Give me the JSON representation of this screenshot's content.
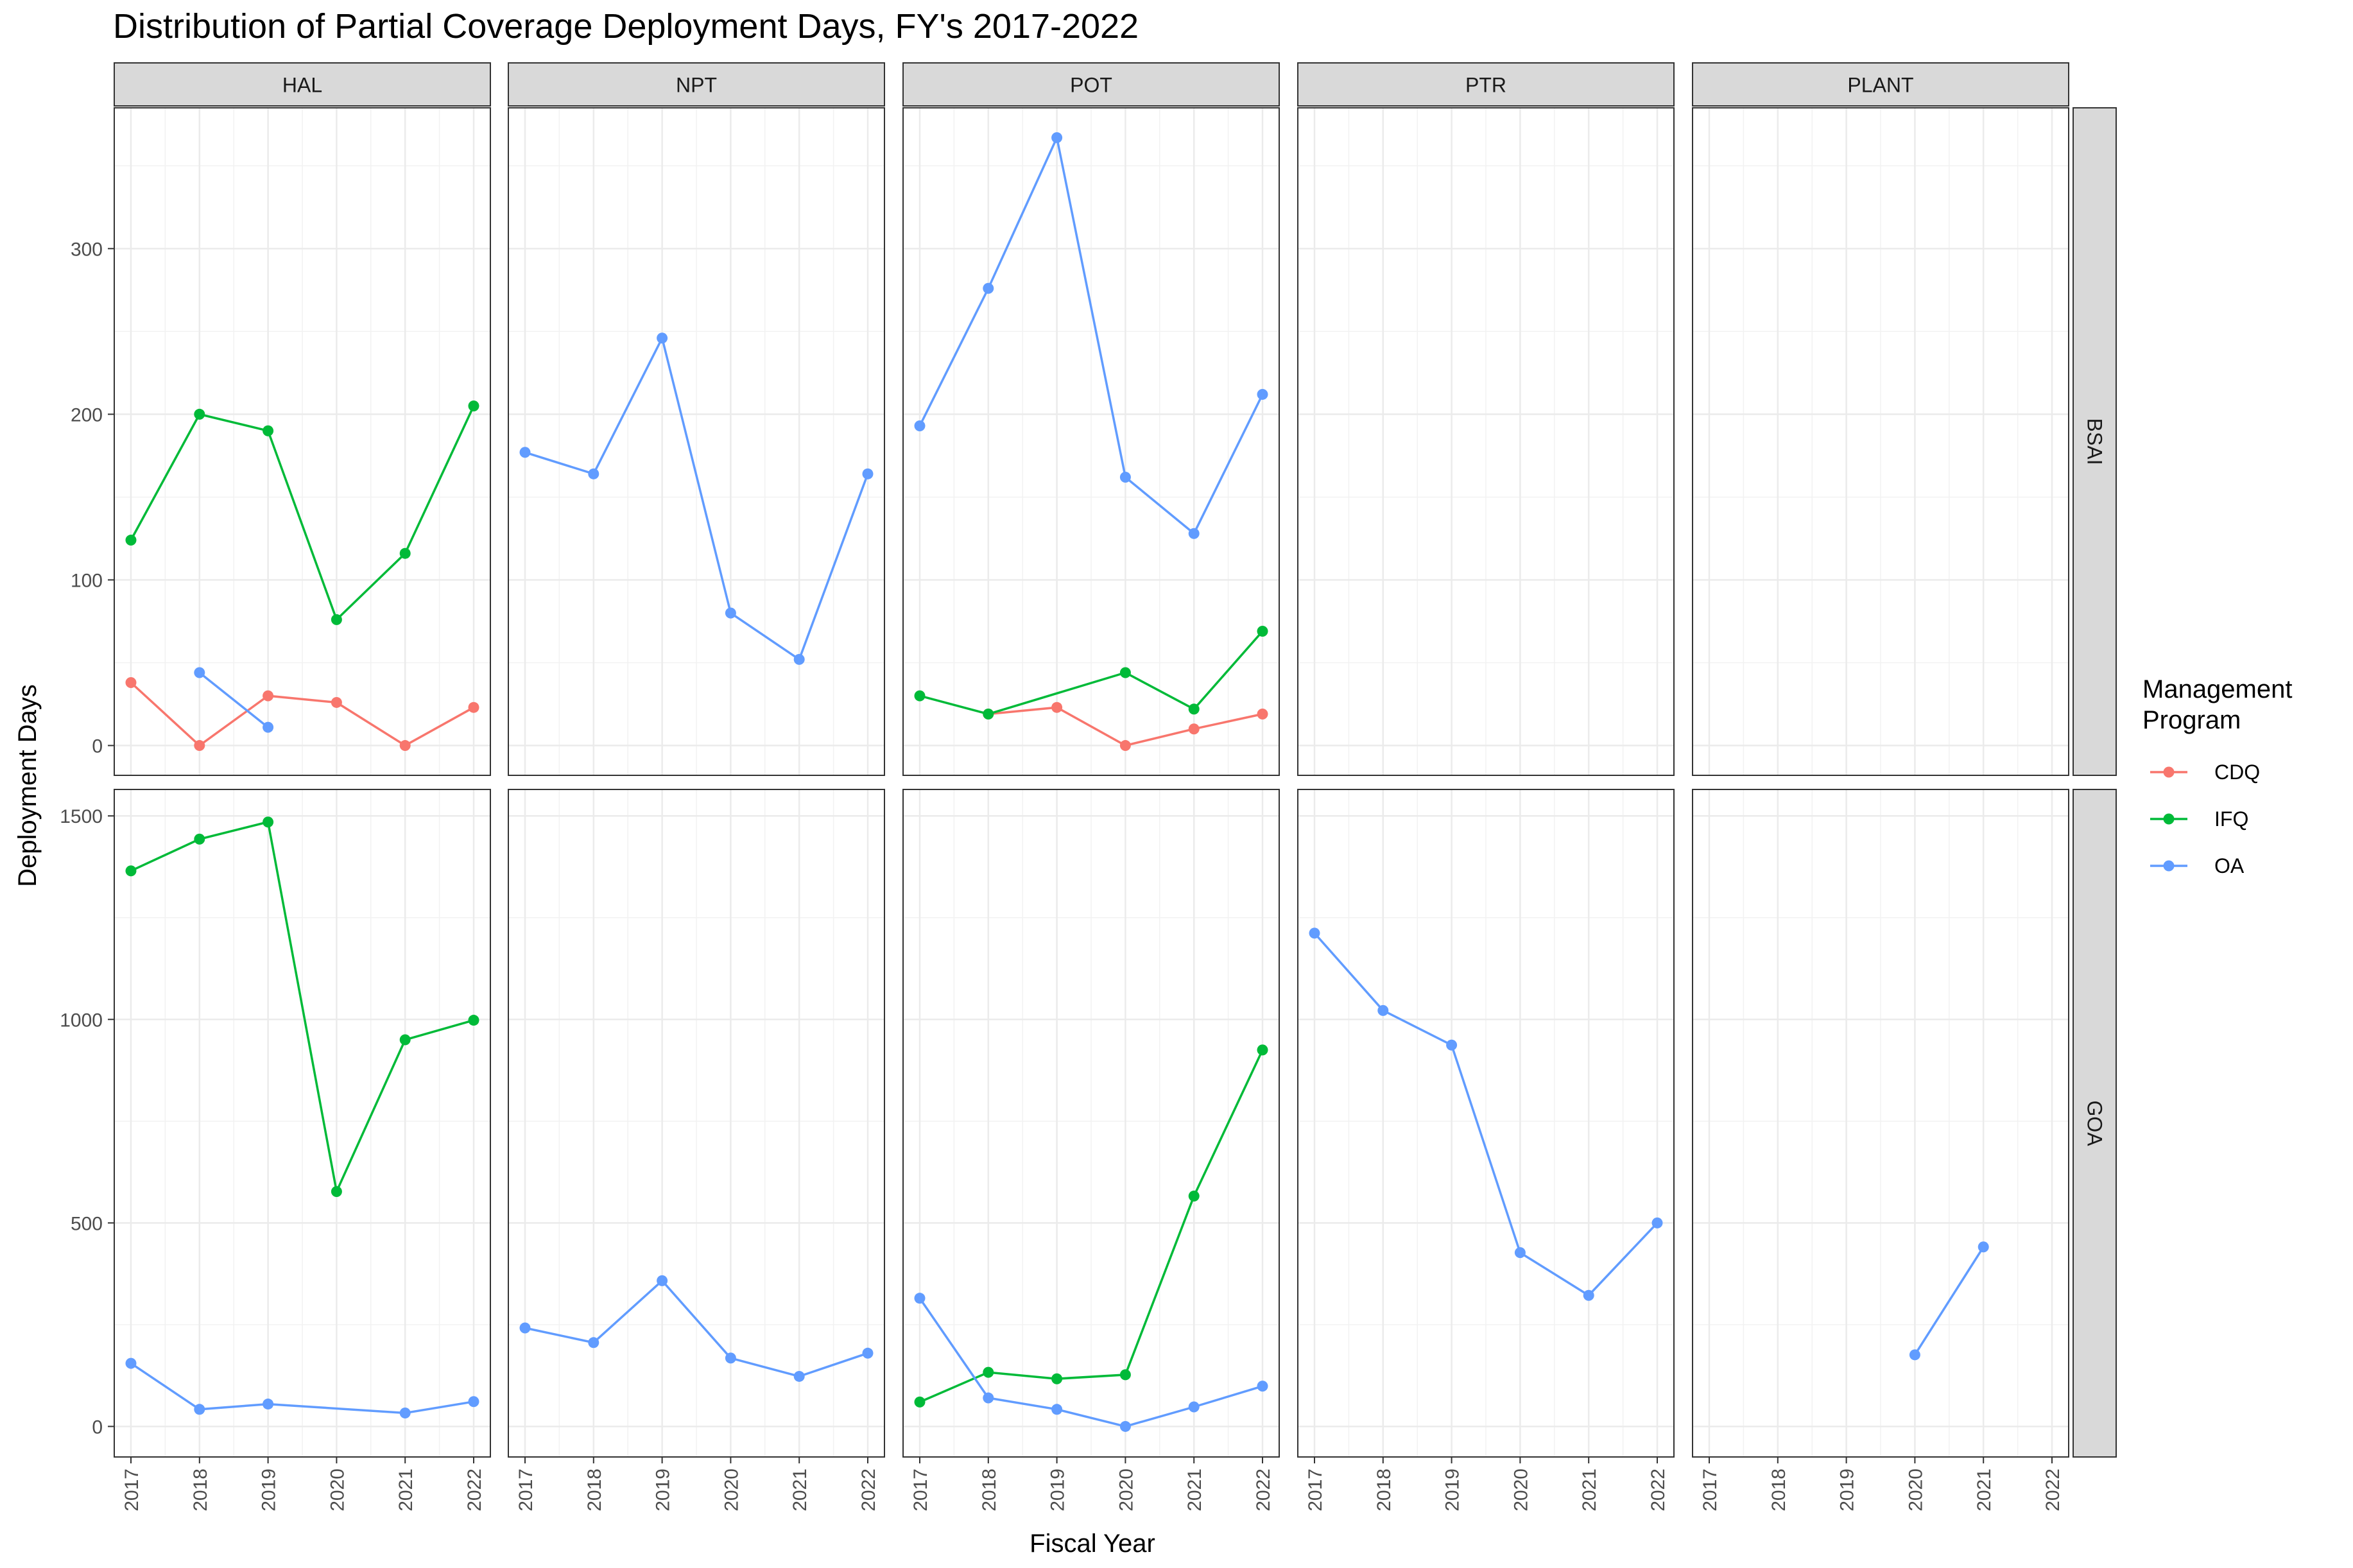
{
  "chart_data": {
    "type": "line",
    "title": "Distribution of Partial Coverage Deployment Days, FY's 2017-2022",
    "xlabel": "Fiscal Year",
    "ylabel": "Deployment Days",
    "x": [
      "2017",
      "2018",
      "2019",
      "2020",
      "2021",
      "2022"
    ],
    "columns": [
      "HAL",
      "NPT",
      "POT",
      "PTR",
      "PLANT"
    ],
    "rows": [
      {
        "name": "BSAI",
        "ylim": [
          -18,
          385
        ],
        "ticks": [
          0,
          100,
          200,
          300
        ]
      },
      {
        "name": "GOA",
        "ylim": [
          -75,
          1565
        ],
        "ticks": [
          0,
          500,
          1000,
          1500
        ]
      }
    ],
    "legend": {
      "title_lines": [
        "Management",
        "Program"
      ],
      "placement": "right",
      "items": [
        {
          "name": "CDQ",
          "color": "#F8766D"
        },
        {
          "name": "IFQ",
          "color": "#00BA38"
        },
        {
          "name": "OA",
          "color": "#619CFF"
        }
      ]
    },
    "grid": true,
    "panels": [
      {
        "column": "HAL",
        "row": "BSAI",
        "series": [
          {
            "name": "CDQ",
            "points": [
              [
                2017,
                38
              ],
              [
                2018,
                0
              ],
              [
                2019,
                30
              ],
              [
                2020,
                26
              ],
              [
                2021,
                0
              ],
              [
                2022,
                23
              ]
            ]
          },
          {
            "name": "IFQ",
            "points": [
              [
                2017,
                124
              ],
              [
                2018,
                200
              ],
              [
                2019,
                190
              ],
              [
                2020,
                76
              ],
              [
                2021,
                116
              ],
              [
                2022,
                205
              ]
            ]
          },
          {
            "name": "OA",
            "points": [
              [
                2018,
                44
              ],
              [
                2019,
                11
              ]
            ]
          }
        ]
      },
      {
        "column": "NPT",
        "row": "BSAI",
        "series": [
          {
            "name": "OA",
            "points": [
              [
                2017,
                177
              ],
              [
                2018,
                164
              ],
              [
                2019,
                246
              ],
              [
                2020,
                80
              ],
              [
                2021,
                52
              ],
              [
                2022,
                164
              ]
            ]
          }
        ]
      },
      {
        "column": "POT",
        "row": "BSAI",
        "series": [
          {
            "name": "CDQ",
            "points": [
              [
                2018,
                19
              ],
              [
                2019,
                23
              ],
              [
                2020,
                0
              ],
              [
                2021,
                10
              ],
              [
                2022,
                19
              ]
            ]
          },
          {
            "name": "IFQ",
            "points": [
              [
                2017,
                30
              ],
              [
                2018,
                19
              ],
              [
                2020,
                44
              ],
              [
                2021,
                22
              ],
              [
                2022,
                69
              ]
            ]
          },
          {
            "name": "OA",
            "points": [
              [
                2017,
                193
              ],
              [
                2018,
                276
              ],
              [
                2019,
                367
              ],
              [
                2020,
                162
              ],
              [
                2021,
                128
              ],
              [
                2022,
                212
              ]
            ]
          }
        ]
      },
      {
        "column": "PTR",
        "row": "BSAI",
        "series": []
      },
      {
        "column": "PLANT",
        "row": "BSAI",
        "series": []
      },
      {
        "column": "HAL",
        "row": "GOA",
        "series": [
          {
            "name": "IFQ",
            "points": [
              [
                2017,
                1365
              ],
              [
                2018,
                1443
              ],
              [
                2019,
                1485
              ],
              [
                2020,
                577
              ],
              [
                2021,
                950
              ],
              [
                2022,
                998
              ]
            ]
          },
          {
            "name": "OA",
            "points": [
              [
                2017,
                155
              ],
              [
                2018,
                42
              ],
              [
                2019,
                55
              ],
              [
                2021,
                33
              ],
              [
                2022,
                61
              ]
            ]
          }
        ]
      },
      {
        "column": "NPT",
        "row": "GOA",
        "series": [
          {
            "name": "OA",
            "points": [
              [
                2017,
                242
              ],
              [
                2018,
                206
              ],
              [
                2019,
                358
              ],
              [
                2020,
                168
              ],
              [
                2021,
                123
              ],
              [
                2022,
                180
              ]
            ]
          }
        ]
      },
      {
        "column": "POT",
        "row": "GOA",
        "series": [
          {
            "name": "IFQ",
            "points": [
              [
                2017,
                60
              ],
              [
                2018,
                133
              ],
              [
                2019,
                117
              ],
              [
                2020,
                127
              ],
              [
                2021,
                566
              ],
              [
                2022,
                925
              ]
            ]
          },
          {
            "name": "OA",
            "points": [
              [
                2017,
                315
              ],
              [
                2018,
                70
              ],
              [
                2019,
                42
              ],
              [
                2020,
                0
              ],
              [
                2021,
                48
              ],
              [
                2022,
                99
              ]
            ]
          }
        ]
      },
      {
        "column": "PTR",
        "row": "GOA",
        "series": [
          {
            "name": "OA",
            "points": [
              [
                2017,
                1212
              ],
              [
                2018,
                1022
              ],
              [
                2019,
                937
              ],
              [
                2020,
                427
              ],
              [
                2021,
                322
              ],
              [
                2022,
                500
              ]
            ]
          }
        ]
      },
      {
        "column": "PLANT",
        "row": "GOA",
        "series": [
          {
            "name": "OA",
            "points": [
              [
                2020,
                176
              ],
              [
                2021,
                441
              ]
            ]
          }
        ]
      }
    ]
  }
}
